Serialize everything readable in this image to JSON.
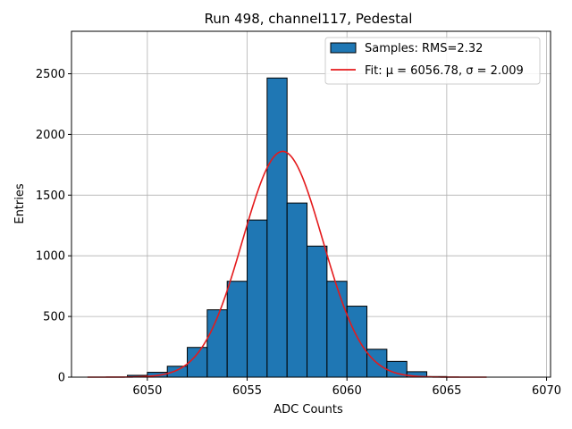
{
  "chart_data": {
    "type": "bar",
    "title": "Run 498, channel117, Pedestal",
    "xlabel": "ADC Counts",
    "ylabel": "Entries",
    "xlim": [
      6046.2,
      6070.2
    ],
    "ylim": [
      0,
      2850
    ],
    "xticks": [
      6050,
      6055,
      6060,
      6065,
      6070
    ],
    "yticks": [
      0,
      500,
      1000,
      1500,
      2000,
      2500
    ],
    "grid": true,
    "legend_position": "top-right",
    "histogram": {
      "name": "Samples: RMS=2.32",
      "color": "#1f77b4",
      "bin_width": 1,
      "bin_edges_start": [
        6049,
        6050,
        6051,
        6052,
        6053,
        6054,
        6055,
        6056,
        6057,
        6058,
        6059,
        6060,
        6061,
        6062,
        6063,
        6064
      ],
      "counts": [
        15,
        40,
        90,
        245,
        555,
        790,
        1295,
        2465,
        1435,
        1080,
        790,
        585,
        230,
        130,
        45,
        5
      ]
    },
    "fit": {
      "name": "Fit: μ = 6056.78, σ = 2.009",
      "color": "#e41a1c",
      "mu": 6056.78,
      "sigma": 2.009,
      "amplitude": 1860,
      "x_range": [
        6047,
        6067
      ]
    }
  }
}
